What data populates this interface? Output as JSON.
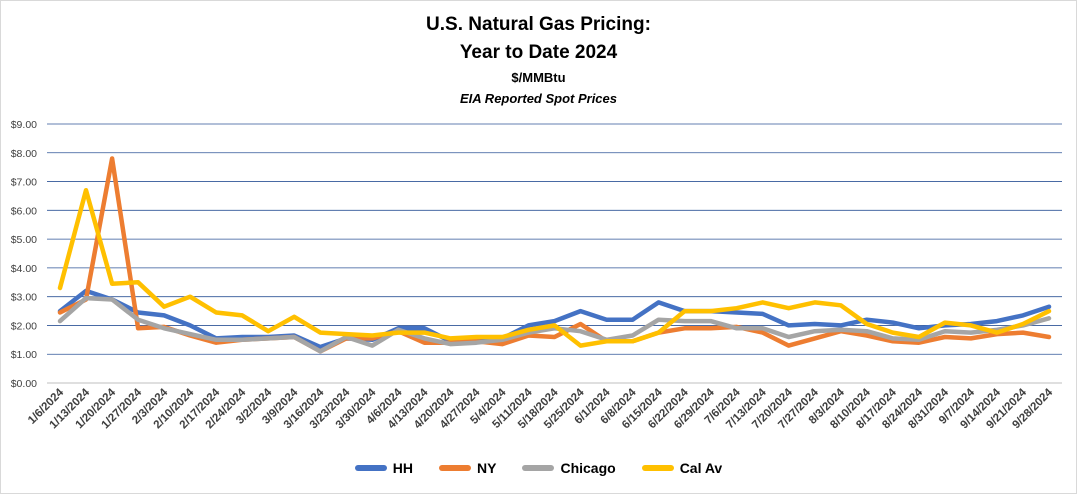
{
  "chart_data": {
    "type": "line",
    "title": "U.S. Natural Gas Pricing:",
    "title_line2": "Year to Date 2024",
    "subtitle": "$/MMBtu",
    "subtitle2": "EIA Reported Spot Prices",
    "xlabel": "",
    "ylabel": "",
    "ylim": [
      0,
      9
    ],
    "y_ticks": [
      "$0.00",
      "$1.00",
      "$2.00",
      "$3.00",
      "$4.00",
      "$5.00",
      "$6.00",
      "$7.00",
      "$8.00",
      "$9.00"
    ],
    "grid": "horizontal",
    "legend_position": "bottom",
    "categories": [
      "1/6/2024",
      "1/13/2024",
      "1/20/2024",
      "1/27/2024",
      "2/3/2024",
      "2/10/2024",
      "2/17/2024",
      "2/24/2024",
      "3/2/2024",
      "3/9/2024",
      "3/16/2024",
      "3/23/2024",
      "3/30/2024",
      "4/6/2024",
      "4/13/2024",
      "4/20/2024",
      "4/27/2024",
      "5/4/2024",
      "5/11/2024",
      "5/18/2024",
      "5/25/2024",
      "6/1/2024",
      "6/8/2024",
      "6/15/2024",
      "6/22/2024",
      "6/29/2024",
      "7/6/2024",
      "7/13/2024",
      "7/20/2024",
      "7/27/2024",
      "8/3/2024",
      "8/10/2024",
      "8/17/2024",
      "8/24/2024",
      "8/31/2024",
      "9/7/2024",
      "9/14/2024",
      "9/21/2024",
      "9/28/2024"
    ],
    "series": [
      {
        "name": "HH",
        "color": "#4472c4",
        "values": [
          2.5,
          3.2,
          2.9,
          2.45,
          2.35,
          2.0,
          1.55,
          1.6,
          1.6,
          1.65,
          1.25,
          1.55,
          1.5,
          1.9,
          1.9,
          1.45,
          1.45,
          1.55,
          2.0,
          2.15,
          2.5,
          2.2,
          2.2,
          2.8,
          2.5,
          2.5,
          2.45,
          2.4,
          2.0,
          2.05,
          2.0,
          2.2,
          2.1,
          1.9,
          2.0,
          2.05,
          2.15,
          2.35,
          2.65
        ]
      },
      {
        "name": "NY",
        "color": "#ed7d31",
        "values": [
          2.45,
          2.9,
          7.8,
          1.9,
          1.95,
          1.65,
          1.4,
          1.5,
          1.55,
          1.6,
          1.1,
          1.55,
          1.55,
          1.8,
          1.4,
          1.4,
          1.45,
          1.35,
          1.65,
          1.6,
          2.05,
          1.45,
          1.45,
          1.75,
          1.9,
          1.9,
          1.95,
          1.75,
          1.3,
          1.55,
          1.8,
          1.65,
          1.45,
          1.4,
          1.6,
          1.55,
          1.7,
          1.75,
          1.6
        ]
      },
      {
        "name": "Chicago",
        "color": "#a5a5a5",
        "values": [
          2.15,
          2.95,
          2.9,
          2.2,
          1.9,
          1.7,
          1.5,
          1.5,
          1.55,
          1.6,
          1.1,
          1.6,
          1.3,
          1.85,
          1.55,
          1.35,
          1.4,
          1.5,
          1.75,
          1.9,
          1.8,
          1.5,
          1.65,
          2.2,
          2.15,
          2.15,
          1.9,
          1.9,
          1.6,
          1.8,
          1.85,
          1.8,
          1.55,
          1.5,
          1.8,
          1.75,
          1.85,
          2.0,
          2.25
        ]
      },
      {
        "name": "Cal Av",
        "color": "#ffc000",
        "values": [
          3.3,
          6.7,
          3.45,
          3.5,
          2.65,
          3.0,
          2.45,
          2.35,
          1.8,
          2.3,
          1.75,
          1.7,
          1.65,
          1.75,
          1.75,
          1.55,
          1.6,
          1.6,
          1.85,
          2.0,
          1.3,
          1.45,
          1.45,
          1.75,
          2.5,
          2.5,
          2.6,
          2.8,
          2.6,
          2.8,
          2.7,
          2.05,
          1.75,
          1.6,
          2.1,
          2.0,
          1.75,
          2.05,
          2.5
        ]
      }
    ]
  }
}
